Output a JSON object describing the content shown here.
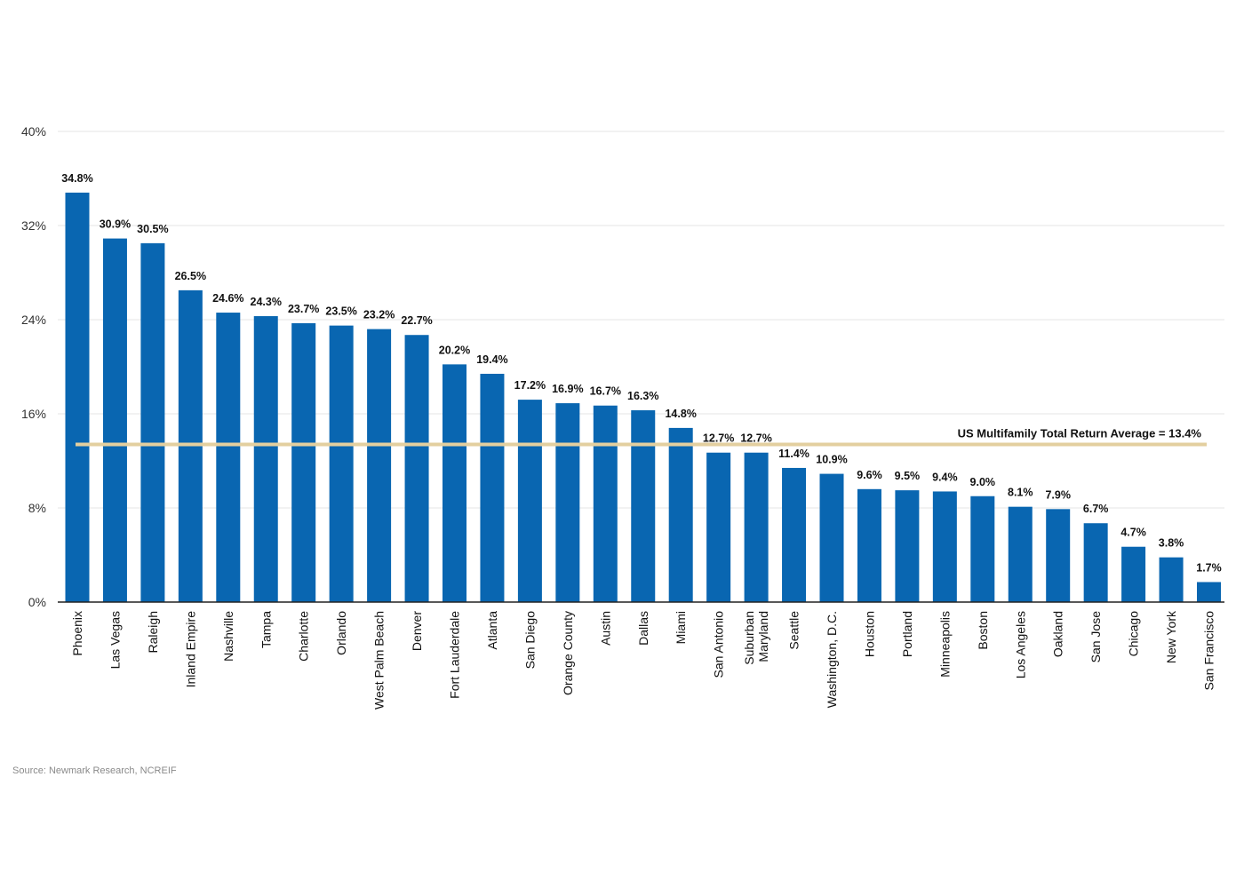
{
  "chart_data": {
    "type": "bar",
    "categories": [
      "Phoenix",
      "Las Vegas",
      "Raleigh",
      "Inland Empire",
      "Nashville",
      "Tampa",
      "Charlotte",
      "Orlando",
      "West Palm Beach",
      "Denver",
      "Fort Lauderdale",
      "Atlanta",
      "San Diego",
      "Orange County",
      "Austin",
      "Dallas",
      "Miami",
      "San Antonio",
      "Suburban Maryland",
      "Seattle",
      "Washington, D.C.",
      "Houston",
      "Portland",
      "Minneapolis",
      "Boston",
      "Los Angeles",
      "Oakland",
      "San Jose",
      "Chicago",
      "New York",
      "San Francisco"
    ],
    "values": [
      34.8,
      30.9,
      30.5,
      26.5,
      24.6,
      24.3,
      23.7,
      23.5,
      23.2,
      22.7,
      20.2,
      19.4,
      17.2,
      16.9,
      16.7,
      16.3,
      14.8,
      12.7,
      12.7,
      11.4,
      10.9,
      9.6,
      9.5,
      9.4,
      9.0,
      8.1,
      7.9,
      6.7,
      4.7,
      3.8,
      1.7
    ],
    "value_labels": [
      "34.8%",
      "30.9%",
      "30.5%",
      "26.5%",
      "24.6%",
      "24.3%",
      "23.7%",
      "23.5%",
      "23.2%",
      "22.7%",
      "20.2%",
      "19.4%",
      "17.2%",
      "16.9%",
      "16.7%",
      "16.3%",
      "14.8%",
      "12.7%",
      "12.7%",
      "11.4%",
      "10.9%",
      "9.6%",
      "9.5%",
      "9.4%",
      "9.0%",
      "8.1%",
      "7.9%",
      "6.7%",
      "4.7%",
      "3.8%",
      "1.7%"
    ],
    "yticks": [
      0,
      8,
      16,
      24,
      32,
      40
    ],
    "ytick_labels": [
      "0%",
      "8%",
      "16%",
      "24%",
      "32%",
      "40%"
    ],
    "ylim": [
      0,
      40
    ],
    "grid": true,
    "reference_line": {
      "value": 13.4,
      "label": "US Multifamily Total Return Average = 13.4%"
    },
    "colors": {
      "bar": "#0966b1",
      "average_line": "#e3cf9f",
      "grid": "#e6e6e6",
      "axis": "#222222"
    }
  },
  "source": "Source: Newmark Research, NCREIF"
}
